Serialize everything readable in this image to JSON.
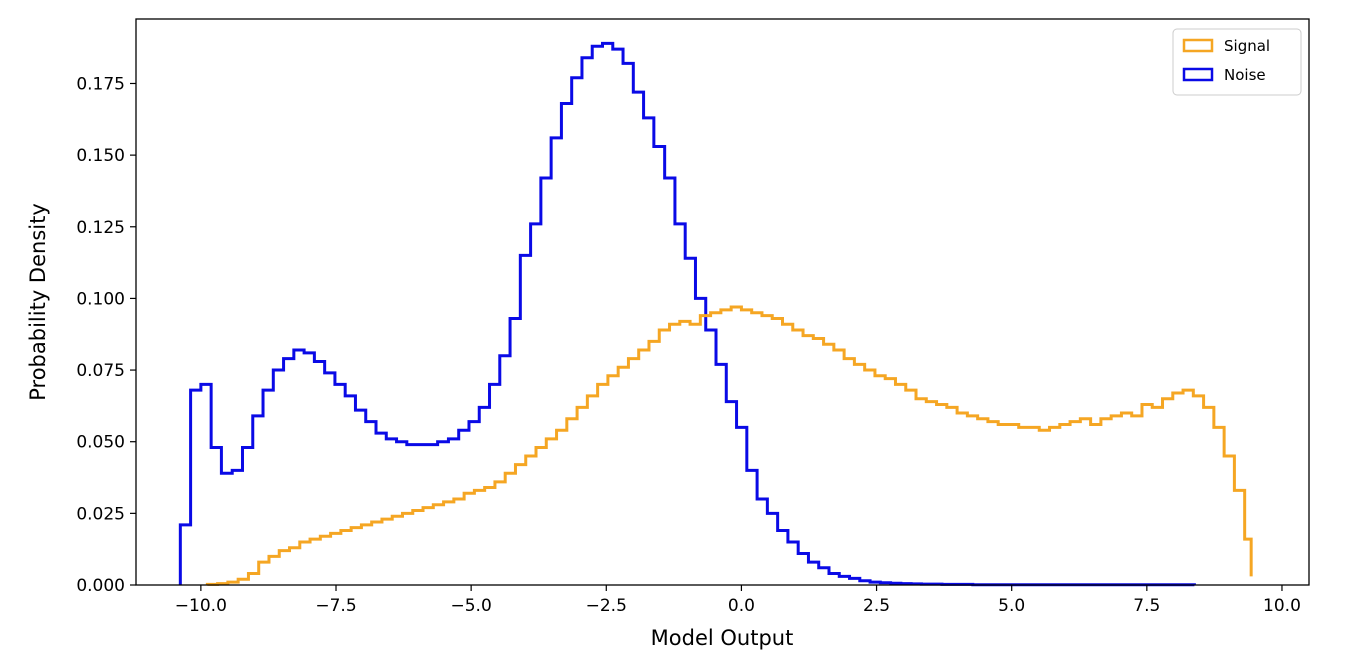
{
  "chart_data": {
    "type": "histogram-step",
    "title": "",
    "xlabel": "Model Output",
    "ylabel": "Probability Density",
    "xlim": [
      -11.2,
      10.5
    ],
    "ylim": [
      0,
      0.1975
    ],
    "xticks": [
      -10.0,
      -7.5,
      -5.0,
      -2.5,
      0.0,
      2.5,
      5.0,
      7.5,
      10.0
    ],
    "xtick_labels": [
      "−10.0",
      "−7.5",
      "−5.0",
      "−2.5",
      "0.0",
      "2.5",
      "5.0",
      "7.5",
      "10.0"
    ],
    "yticks": [
      0.0,
      0.025,
      0.05,
      0.075,
      0.1,
      0.125,
      0.15,
      0.175
    ],
    "ytick_labels": [
      "0.000",
      "0.025",
      "0.050",
      "0.075",
      "0.100",
      "0.125",
      "0.150",
      "0.175"
    ],
    "grid": false,
    "legend": {
      "position": "top-right",
      "entries": [
        {
          "name": "Signal",
          "color": "#f5a623"
        },
        {
          "name": "Noise",
          "color": "#0a0ae6"
        }
      ]
    },
    "series": [
      {
        "name": "Noise",
        "color": "#0a0ae6",
        "edges": [
          -10.38,
          -10.19,
          -10.0,
          -9.81,
          -9.62,
          -9.42,
          -9.23,
          -9.04,
          -8.85,
          -8.66,
          -8.47,
          -8.28,
          -8.09,
          -7.9,
          -7.71,
          -7.52,
          -7.33,
          -7.14,
          -6.95,
          -6.76,
          -6.57,
          -6.38,
          -6.19,
          -6.0,
          -5.81,
          -5.62,
          -5.42,
          -5.23,
          -5.04,
          -4.85,
          -4.66,
          -4.47,
          -4.28,
          -4.09,
          -3.9,
          -3.71,
          -3.52,
          -3.33,
          -3.14,
          -2.95,
          -2.76,
          -2.57,
          -2.38,
          -2.19,
          -2.0,
          -1.81,
          -1.62,
          -1.42,
          -1.23,
          -1.04,
          -0.85,
          -0.66,
          -0.47,
          -0.28,
          -0.09,
          0.1,
          0.29,
          0.48,
          0.67,
          0.86,
          1.05,
          1.24,
          1.43,
          1.62,
          1.81,
          2.0,
          2.19,
          2.38,
          2.57,
          2.76,
          2.95,
          3.14,
          3.33,
          3.52,
          3.71,
          3.9,
          4.09,
          4.28,
          4.48,
          4.67,
          4.86,
          5.05,
          5.24,
          5.43,
          5.62,
          5.81,
          6.0,
          6.19,
          6.38,
          6.57,
          6.76,
          6.95,
          7.14,
          7.33,
          7.52,
          7.71,
          7.9,
          8.09,
          8.28,
          8.38
        ],
        "values": [
          0.021,
          0.068,
          0.07,
          0.048,
          0.039,
          0.04,
          0.048,
          0.059,
          0.068,
          0.075,
          0.079,
          0.082,
          0.081,
          0.078,
          0.074,
          0.07,
          0.066,
          0.061,
          0.057,
          0.053,
          0.051,
          0.05,
          0.049,
          0.049,
          0.049,
          0.05,
          0.051,
          0.054,
          0.057,
          0.062,
          0.07,
          0.08,
          0.093,
          0.115,
          0.126,
          0.142,
          0.156,
          0.168,
          0.177,
          0.184,
          0.188,
          0.189,
          0.187,
          0.182,
          0.172,
          0.163,
          0.153,
          0.142,
          0.126,
          0.114,
          0.1,
          0.089,
          0.077,
          0.064,
          0.055,
          0.04,
          0.03,
          0.025,
          0.019,
          0.015,
          0.011,
          0.008,
          0.006,
          0.004,
          0.003,
          0.0023,
          0.0015,
          0.001,
          0.0008,
          0.0006,
          0.0005,
          0.0004,
          0.0003,
          0.0003,
          0.0002,
          0.0002,
          0.0002,
          0.0001,
          0.0001,
          0.0001,
          0.0001,
          0.0001,
          0.0001,
          0.0001,
          0.0001,
          0.0001,
          0.0001,
          0.0001,
          0.0001,
          0.0001,
          0.0001,
          0.0001,
          0.0001,
          0.0001,
          0.0001,
          0.0001,
          0.0001,
          0.0001,
          0.0001
        ]
      },
      {
        "name": "Signal",
        "color": "#f5a623",
        "edges": [
          -9.88,
          -9.69,
          -9.5,
          -9.31,
          -9.12,
          -8.93,
          -8.74,
          -8.55,
          -8.36,
          -8.17,
          -7.98,
          -7.79,
          -7.6,
          -7.41,
          -7.22,
          -7.03,
          -6.84,
          -6.65,
          -6.46,
          -6.27,
          -6.08,
          -5.89,
          -5.7,
          -5.51,
          -5.32,
          -5.13,
          -4.94,
          -4.75,
          -4.56,
          -4.37,
          -4.18,
          -3.99,
          -3.8,
          -3.61,
          -3.42,
          -3.23,
          -3.04,
          -2.85,
          -2.66,
          -2.47,
          -2.28,
          -2.09,
          -1.9,
          -1.71,
          -1.52,
          -1.33,
          -1.14,
          -0.95,
          -0.76,
          -0.57,
          -0.38,
          -0.19,
          0.0,
          0.19,
          0.38,
          0.57,
          0.76,
          0.95,
          1.14,
          1.33,
          1.52,
          1.71,
          1.9,
          2.09,
          2.28,
          2.47,
          2.66,
          2.85,
          3.04,
          3.23,
          3.42,
          3.61,
          3.8,
          3.99,
          4.18,
          4.37,
          4.56,
          4.75,
          4.94,
          5.13,
          5.32,
          5.51,
          5.7,
          5.89,
          6.08,
          6.27,
          6.46,
          6.65,
          6.84,
          7.03,
          7.22,
          7.41,
          7.6,
          7.79,
          7.98,
          8.17,
          8.36,
          8.55,
          8.74,
          8.93,
          9.12,
          9.31,
          9.43
        ],
        "values": [
          0.0002,
          0.0005,
          0.001,
          0.002,
          0.004,
          0.008,
          0.01,
          0.012,
          0.013,
          0.015,
          0.016,
          0.017,
          0.018,
          0.019,
          0.02,
          0.021,
          0.022,
          0.023,
          0.024,
          0.025,
          0.026,
          0.027,
          0.028,
          0.029,
          0.03,
          0.032,
          0.033,
          0.034,
          0.036,
          0.039,
          0.042,
          0.045,
          0.048,
          0.051,
          0.054,
          0.058,
          0.062,
          0.066,
          0.07,
          0.073,
          0.076,
          0.079,
          0.082,
          0.085,
          0.089,
          0.091,
          0.092,
          0.091,
          0.094,
          0.095,
          0.096,
          0.097,
          0.096,
          0.095,
          0.094,
          0.093,
          0.091,
          0.089,
          0.087,
          0.086,
          0.084,
          0.082,
          0.079,
          0.077,
          0.075,
          0.073,
          0.072,
          0.07,
          0.068,
          0.065,
          0.064,
          0.063,
          0.062,
          0.06,
          0.059,
          0.058,
          0.057,
          0.056,
          0.056,
          0.055,
          0.055,
          0.054,
          0.055,
          0.056,
          0.057,
          0.058,
          0.056,
          0.058,
          0.059,
          0.06,
          0.059,
          0.063,
          0.062,
          0.065,
          0.067,
          0.068,
          0.066,
          0.062,
          0.055,
          0.045,
          0.033,
          0.016,
          0.003
        ]
      }
    ]
  }
}
